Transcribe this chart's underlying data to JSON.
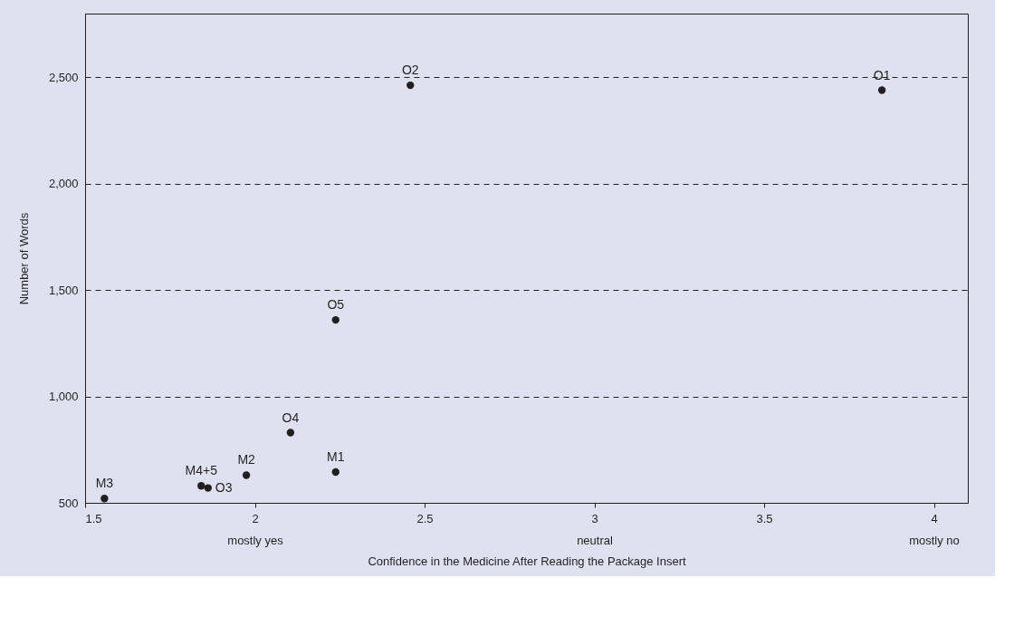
{
  "chart_data": {
    "type": "scatter",
    "xlabel": "Confidence in the Medicine After Reading the Package Insert",
    "ylabel": "Number of Words",
    "x": [
      1.557,
      1.842,
      1.862,
      1.975,
      2.105,
      2.238,
      2.238,
      2.458,
      3.847
    ],
    "series": [
      {
        "color": "#231f20",
        "values": [
          520,
          580,
          570,
          630,
          830,
          645,
          1360,
          2463,
          2440
        ]
      }
    ],
    "annotations": [
      {
        "text": "M3",
        "x": 1.557,
        "y": 520
      },
      {
        "text": "M4+5",
        "x": 1.842,
        "y": 580
      },
      {
        "text": "O3",
        "x": 1.862,
        "y": 570
      },
      {
        "text": "M2",
        "x": 1.975,
        "y": 630
      },
      {
        "text": "O4",
        "x": 2.105,
        "y": 830
      },
      {
        "text": "M1",
        "x": 2.238,
        "y": 645
      },
      {
        "text": "O5",
        "x": 2.238,
        "y": 1360
      },
      {
        "text": "O2",
        "x": 2.458,
        "y": 2463
      },
      {
        "text": "O1",
        "x": 3.847,
        "y": 2440
      }
    ],
    "xlim": [
      1.5,
      4.1
    ],
    "xticks": [
      1.5,
      {
        "value": 2,
        "label": "2\nmostly yes"
      },
      2.5,
      {
        "value": 3,
        "label": "3\nneutral"
      },
      3.5,
      {
        "value": 4,
        "label": "4\nmostly no"
      }
    ],
    "ylim": [
      500,
      2800
    ],
    "yticks": [
      500,
      {
        "value": 1000,
        "label": "1,000"
      },
      {
        "value": 1500,
        "label": "1,500"
      },
      {
        "value": 2000,
        "label": "2,000"
      },
      {
        "value": 2500,
        "label": "2,500"
      }
    ],
    "grid": "y",
    "line_style": "dashed",
    "marker": "circle"
  }
}
